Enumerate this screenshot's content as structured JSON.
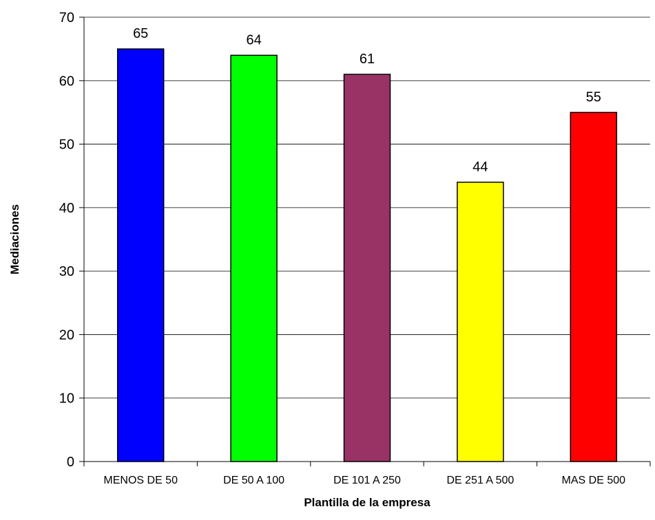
{
  "chart_data": {
    "type": "bar",
    "title": "",
    "xlabel": "Plantilla de la empresa",
    "ylabel": "Mediaciones",
    "categories": [
      "MENOS DE 50",
      "DE 50 A 100",
      "DE 101 A 250",
      "DE 251 A 500",
      "MAS DE 500"
    ],
    "values": [
      65,
      64,
      61,
      44,
      55
    ],
    "data_labels": [
      "65",
      "64",
      "61",
      "44",
      "55"
    ],
    "bar_colors": [
      "#0000ff",
      "#00ff00",
      "#993366",
      "#ffff00",
      "#ff0000"
    ],
    "ylim": [
      0,
      70
    ],
    "yticks": [
      0,
      10,
      20,
      30,
      40,
      50,
      60,
      70
    ],
    "ytick_labels": [
      "0",
      "10",
      "20",
      "30",
      "40",
      "50",
      "60",
      "70"
    ],
    "grid": true,
    "legend": "none"
  }
}
